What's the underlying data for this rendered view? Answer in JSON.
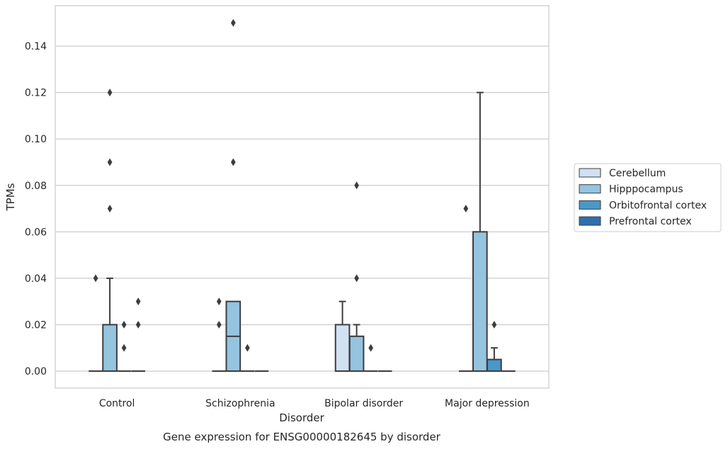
{
  "chart_data": {
    "type": "box",
    "title": "",
    "xlabel": "Disorder",
    "ylabel": "TPMs",
    "caption": "Gene expression for ENSG00000182645 by disorder",
    "categories": [
      "Control",
      "Schizophrenia",
      "Bipolar disorder",
      "Major depression"
    ],
    "ylim": [
      -0.007,
      0.157
    ],
    "yticks": [
      0.0,
      0.02,
      0.04,
      0.06,
      0.08,
      0.1,
      0.12,
      0.14
    ],
    "ytick_labels": [
      "0.00",
      "0.02",
      "0.04",
      "0.06",
      "0.08",
      "0.10",
      "0.12",
      "0.14"
    ],
    "grid": "horizontal",
    "legend_position": "right",
    "series": [
      {
        "name": "Cerebellum",
        "color": "#d0e1f2",
        "boxes": [
          {
            "q1": 0,
            "median": 0,
            "q3": 0,
            "whisker_low": 0,
            "whisker_high": 0,
            "fliers": [
              0.04
            ]
          },
          {
            "q1": 0,
            "median": 0,
            "q3": 0,
            "whisker_low": 0,
            "whisker_high": 0,
            "fliers": [
              0.02,
              0.03
            ]
          },
          {
            "q1": 0,
            "median": 0,
            "q3": 0.02,
            "whisker_low": 0,
            "whisker_high": 0.03,
            "fliers": []
          },
          {
            "q1": 0,
            "median": 0,
            "q3": 0,
            "whisker_low": 0,
            "whisker_high": 0,
            "fliers": [
              0.07
            ]
          }
        ]
      },
      {
        "name": "Hipppocampus",
        "color": "#94c4df",
        "boxes": [
          {
            "q1": 0,
            "median": 0,
            "q3": 0.02,
            "whisker_low": 0,
            "whisker_high": 0.04,
            "fliers": [
              0.07,
              0.09,
              0.12
            ]
          },
          {
            "q1": 0,
            "median": 0.015,
            "q3": 0.03,
            "whisker_low": 0,
            "whisker_high": 0.03,
            "fliers": [
              0.09,
              0.15
            ]
          },
          {
            "q1": 0,
            "median": 0,
            "q3": 0.015,
            "whisker_low": 0,
            "whisker_high": 0.02,
            "fliers": [
              0.04,
              0.08
            ]
          },
          {
            "q1": 0,
            "median": 0,
            "q3": 0.06,
            "whisker_low": 0,
            "whisker_high": 0.12,
            "fliers": []
          }
        ]
      },
      {
        "name": "Orbitofrontal cortex",
        "color": "#4a98c9",
        "boxes": [
          {
            "q1": 0,
            "median": 0,
            "q3": 0,
            "whisker_low": 0,
            "whisker_high": 0,
            "fliers": [
              0.01,
              0.02
            ]
          },
          {
            "q1": 0,
            "median": 0,
            "q3": 0,
            "whisker_low": 0,
            "whisker_high": 0,
            "fliers": [
              0.01
            ]
          },
          {
            "q1": 0,
            "median": 0,
            "q3": 0,
            "whisker_low": 0,
            "whisker_high": 0,
            "fliers": [
              0.01
            ]
          },
          {
            "q1": 0,
            "median": 0,
            "q3": 0.005,
            "whisker_low": 0,
            "whisker_high": 0.01,
            "fliers": [
              0.02
            ]
          }
        ]
      },
      {
        "name": "Prefrontal cortex",
        "color": "#2e6fae",
        "boxes": [
          {
            "q1": 0,
            "median": 0,
            "q3": 0,
            "whisker_low": 0,
            "whisker_high": 0,
            "fliers": [
              0.02,
              0.03
            ]
          },
          {
            "q1": 0,
            "median": 0,
            "q3": 0,
            "whisker_low": 0,
            "whisker_high": 0,
            "fliers": []
          },
          {
            "q1": 0,
            "median": 0,
            "q3": 0,
            "whisker_low": 0,
            "whisker_high": 0,
            "fliers": []
          },
          {
            "q1": 0,
            "median": 0,
            "q3": 0,
            "whisker_low": 0,
            "whisker_high": 0,
            "fliers": []
          }
        ]
      }
    ]
  }
}
